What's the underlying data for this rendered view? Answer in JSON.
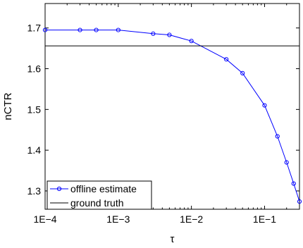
{
  "chart_data": {
    "type": "line",
    "xscale": "log",
    "xlabel": "τ",
    "ylabel": "nCTR",
    "xlim": [
      0.0001,
      0.3
    ],
    "ylim": [
      1.255,
      1.76
    ],
    "xticks": [
      {
        "value": 0.0001,
        "label": "1E−4"
      },
      {
        "value": 0.001,
        "label": "1E−3"
      },
      {
        "value": 0.01,
        "label": "1E−2"
      },
      {
        "value": 0.1,
        "label": "1E−1"
      }
    ],
    "yticks": [
      {
        "value": 1.3,
        "label": "1.3"
      },
      {
        "value": 1.4,
        "label": "1.4"
      },
      {
        "value": 1.5,
        "label": "1.5"
      },
      {
        "value": 1.6,
        "label": "1.6"
      },
      {
        "value": 1.7,
        "label": "1.7"
      }
    ],
    "series": [
      {
        "name": "offline estimate",
        "color": "#0000ff",
        "marker": "circle",
        "x": [
          0.0001,
          0.0003,
          0.0005,
          0.001,
          0.003,
          0.005,
          0.01,
          0.03,
          0.05,
          0.1,
          0.15,
          0.2,
          0.25,
          0.3
        ],
        "y": [
          1.695,
          1.695,
          1.695,
          1.695,
          1.686,
          1.683,
          1.668,
          1.623,
          1.589,
          1.51,
          1.434,
          1.37,
          1.318,
          1.274
        ]
      },
      {
        "name": "ground truth",
        "color": "#000000",
        "marker": "none",
        "x": [
          0.0001,
          0.3
        ],
        "y": [
          1.656,
          1.656
        ]
      }
    ],
    "legend": "bottom-left",
    "grid": false
  }
}
